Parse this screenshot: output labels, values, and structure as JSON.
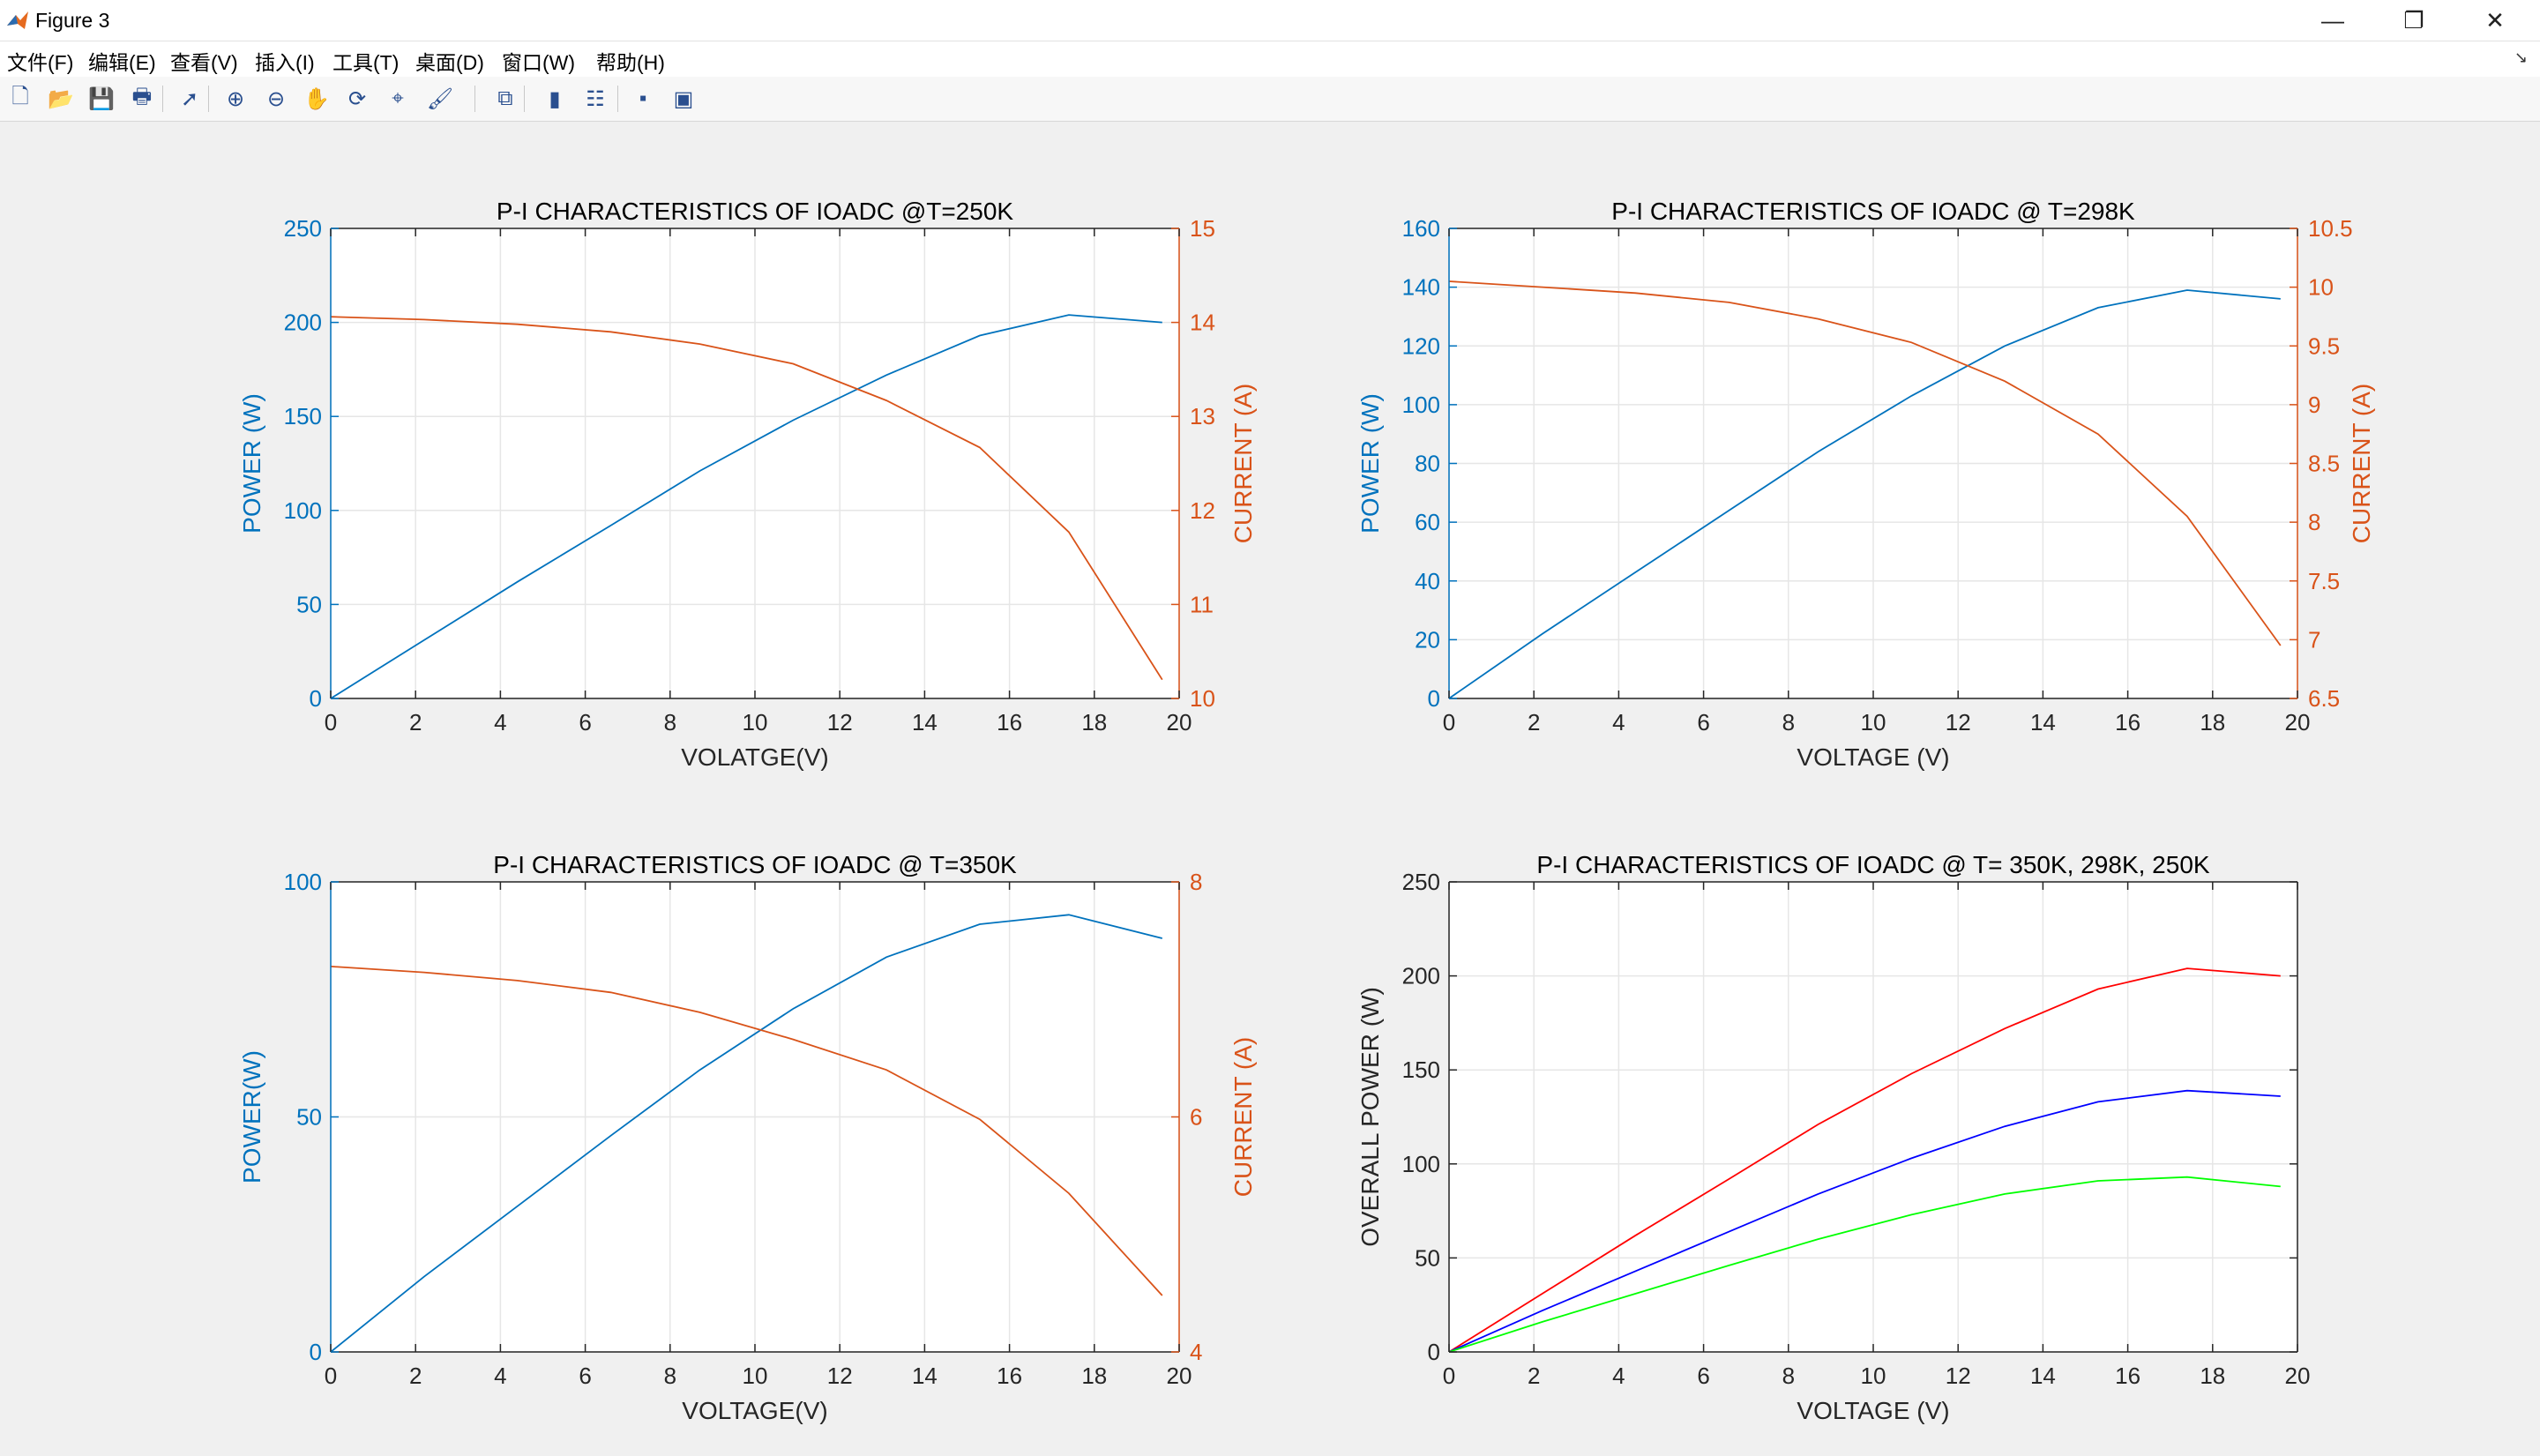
{
  "window": {
    "title": "Figure 3",
    "controls": {
      "minimize": "—",
      "maximize": "❐",
      "close": "✕"
    }
  },
  "menu": [
    "文件(F)",
    "编辑(E)",
    "查看(V)",
    "插入(I)",
    "工具(T)",
    "桌面(D)",
    "窗口(W)",
    "帮助(H)"
  ],
  "toolbar": [
    {
      "icon": "new-figure-icon",
      "glyph": "🗋"
    },
    {
      "icon": "open-file-icon",
      "glyph": "📂"
    },
    {
      "icon": "save-icon",
      "glyph": "💾"
    },
    {
      "icon": "print-icon",
      "glyph": "🖶"
    },
    {
      "icon": "pointer-icon",
      "glyph": "➚"
    },
    {
      "icon": "zoom-in-icon",
      "glyph": "⊕"
    },
    {
      "icon": "zoom-out-icon",
      "glyph": "⊖"
    },
    {
      "icon": "pan-hand-icon",
      "glyph": "✋"
    },
    {
      "icon": "rotate-3d-icon",
      "glyph": "⟳"
    },
    {
      "icon": "data-cursor-icon",
      "glyph": "⌖"
    },
    {
      "icon": "brush-icon",
      "glyph": "🖌"
    },
    {
      "icon": "link-plot-icon",
      "glyph": "⧉"
    },
    {
      "icon": "colorbar-icon",
      "glyph": "▮"
    },
    {
      "icon": "legend-icon",
      "glyph": "☷"
    },
    {
      "icon": "hide-plot-tools-icon",
      "glyph": "▪"
    },
    {
      "icon": "show-plot-tools-icon",
      "glyph": "▣"
    }
  ],
  "colors": {
    "left_axis": "#0072BD",
    "right_axis": "#D95319",
    "axis_black": "#262626",
    "grid": "#e6e6e6",
    "red": "#ff0000",
    "blue": "#0000ff",
    "green": "#00ff00"
  },
  "chart_data": [
    {
      "type": "line",
      "title": "P-I CHARACTERISTICS OF IOADC @T=250K",
      "xlabel": "VOLATGE(V)",
      "ylabel_left": "POWER (W)",
      "ylabel_right": "CURRENT (A)",
      "xlim": [
        0,
        20
      ],
      "xticks": [
        "0",
        "2",
        "4",
        "6",
        "8",
        "10",
        "12",
        "14",
        "16",
        "18",
        "20"
      ],
      "ylim_left": [
        0,
        250
      ],
      "yticks_left": [
        "0",
        "50",
        "100",
        "150",
        "200",
        "250"
      ],
      "ylim_right": [
        10,
        15
      ],
      "yticks_right": [
        "10",
        "11",
        "12",
        "13",
        "14",
        "15"
      ],
      "grid": true,
      "series": [
        {
          "axis": "left",
          "x": [
            0,
            2.2,
            4.4,
            6.6,
            8.7,
            10.9,
            13.1,
            15.3,
            17.4,
            19.6
          ],
          "y": [
            0,
            31,
            62,
            92,
            121,
            148,
            172,
            193,
            204,
            200
          ]
        },
        {
          "axis": "right",
          "x": [
            0,
            2.2,
            4.4,
            6.6,
            8.7,
            10.9,
            13.1,
            15.3,
            17.4,
            19.6
          ],
          "y": [
            14.06,
            14.03,
            13.98,
            13.9,
            13.77,
            13.56,
            13.17,
            12.67,
            11.77,
            10.2
          ]
        }
      ]
    },
    {
      "type": "line",
      "title": "P-I CHARACTERISTICS OF IOADC @ T=298K",
      "xlabel": "VOLTAGE (V)",
      "ylabel_left": "POWER (W)",
      "ylabel_right": "CURRENT (A)",
      "xlim": [
        0,
        20
      ],
      "xticks": [
        "0",
        "2",
        "4",
        "6",
        "8",
        "10",
        "12",
        "14",
        "16",
        "18",
        "20"
      ],
      "ylim_left": [
        0,
        160
      ],
      "yticks_left": [
        "0",
        "20",
        "40",
        "60",
        "80",
        "100",
        "120",
        "140",
        "160"
      ],
      "ylim_right": [
        6.5,
        10.5
      ],
      "yticks_right": [
        "6.5",
        "7",
        "7.5",
        "8",
        "8.5",
        "9",
        "9.5",
        "10",
        "10.5"
      ],
      "grid": true,
      "series": [
        {
          "axis": "left",
          "x": [
            0,
            2.2,
            4.4,
            6.6,
            8.7,
            10.9,
            13.1,
            15.3,
            17.4,
            19.6
          ],
          "y": [
            0,
            22,
            43,
            64,
            84,
            103,
            120,
            133,
            139,
            136
          ]
        },
        {
          "axis": "right",
          "x": [
            0,
            2.2,
            4.4,
            6.6,
            8.7,
            10.9,
            13.1,
            15.3,
            17.4,
            19.6
          ],
          "y": [
            10.05,
            10.0,
            9.95,
            9.87,
            9.73,
            9.53,
            9.2,
            8.75,
            8.05,
            6.95
          ]
        }
      ]
    },
    {
      "type": "line",
      "title": "P-I CHARACTERISTICS OF IOADC @ T=350K",
      "xlabel": "VOLTAGE(V)",
      "ylabel_left": "POWER(W)",
      "ylabel_right": "CURRENT (A)",
      "xlim": [
        0,
        20
      ],
      "xticks": [
        "0",
        "2",
        "4",
        "6",
        "8",
        "10",
        "12",
        "14",
        "16",
        "18",
        "20"
      ],
      "ylim_left": [
        0,
        100
      ],
      "yticks_left": [
        "0",
        "50",
        "100"
      ],
      "ylim_right": [
        4,
        8
      ],
      "yticks_right": [
        "4",
        "6",
        "8"
      ],
      "grid": true,
      "series": [
        {
          "axis": "left",
          "x": [
            0,
            2.2,
            4.4,
            6.6,
            8.7,
            10.9,
            13.1,
            15.3,
            17.4,
            19.6
          ],
          "y": [
            0,
            16,
            31,
            46,
            60,
            73,
            84,
            91,
            93,
            88
          ]
        },
        {
          "axis": "right",
          "x": [
            0,
            2.2,
            4.4,
            6.6,
            8.7,
            10.9,
            13.1,
            15.3,
            17.4,
            19.6
          ],
          "y": [
            7.28,
            7.23,
            7.16,
            7.06,
            6.89,
            6.66,
            6.4,
            5.98,
            5.35,
            4.48
          ]
        }
      ]
    },
    {
      "type": "line",
      "title": "P-I CHARACTERISTICS OF IOADC @ T= 350K, 298K, 250K",
      "xlabel": "VOLTAGE (V)",
      "ylabel_left": "OVERALL POWER (W)",
      "xlim": [
        0,
        20
      ],
      "xticks": [
        "0",
        "2",
        "4",
        "6",
        "8",
        "10",
        "12",
        "14",
        "16",
        "18",
        "20"
      ],
      "ylim_left": [
        0,
        250
      ],
      "yticks_left": [
        "0",
        "50",
        "100",
        "150",
        "200",
        "250"
      ],
      "grid": true,
      "series": [
        {
          "axis": "left",
          "color": "red",
          "x": [
            0,
            2.2,
            4.4,
            6.6,
            8.7,
            10.9,
            13.1,
            15.3,
            17.4,
            19.6
          ],
          "y": [
            0,
            31,
            62,
            92,
            121,
            148,
            172,
            193,
            204,
            200
          ]
        },
        {
          "axis": "left",
          "color": "blue",
          "x": [
            0,
            2.2,
            4.4,
            6.6,
            8.7,
            10.9,
            13.1,
            15.3,
            17.4,
            19.6
          ],
          "y": [
            0,
            22,
            43,
            64,
            84,
            103,
            120,
            133,
            139,
            136
          ]
        },
        {
          "axis": "left",
          "color": "green",
          "x": [
            0,
            2.2,
            4.4,
            6.6,
            8.7,
            10.9,
            13.1,
            15.3,
            17.4,
            19.6
          ],
          "y": [
            0,
            16,
            31,
            46,
            60,
            73,
            84,
            91,
            93,
            88
          ]
        }
      ]
    }
  ]
}
